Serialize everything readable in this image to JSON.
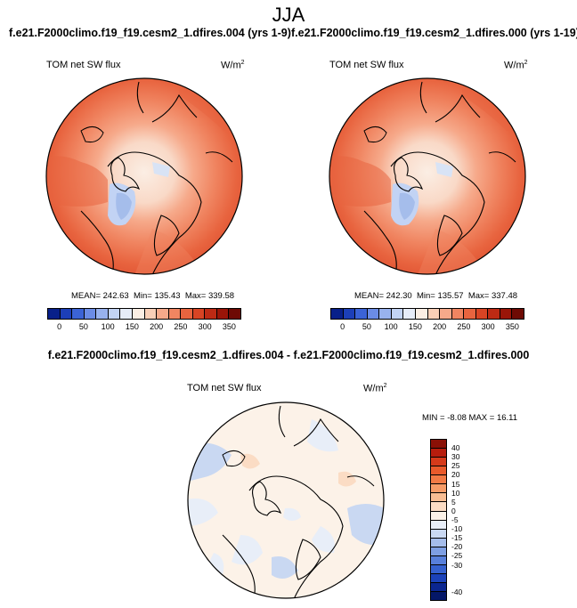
{
  "main_title": "JJA",
  "panel_left": {
    "case_title": "f.e21.F2000climo.f19_f19.cesm2_1.dfires.004 (yrs 1-9)",
    "variable": "TOM net SW flux",
    "unit": "W/m",
    "unit_sup": "2",
    "mean_label": "MEAN= 242.63",
    "min_label": "Min= 135.43",
    "max_label": "Max= 339.58"
  },
  "panel_right": {
    "case_title": "f.e21.F2000climo.f19_f19.cesm2_1.dfires.000 (yrs 1-19)",
    "variable": "TOM net SW flux",
    "unit": "W/m",
    "unit_sup": "2",
    "mean_label": "MEAN= 242.30",
    "min_label": "Min= 135.57",
    "max_label": "Max= 337.48"
  },
  "panel_diff": {
    "case_title": "f.e21.F2000climo.f19_f19.cesm2_1.dfires.004 - f.e21.F2000climo.f19_f19.cesm2_1.dfires.000",
    "variable": "TOM net SW flux",
    "unit": "W/m",
    "unit_sup": "2",
    "minmax_label": "MIN = -8.08 MAX = 16.11"
  },
  "abs_colorbar": {
    "colors": [
      "#08208a",
      "#1c3fb8",
      "#3b63d6",
      "#6b8ce6",
      "#98b2ee",
      "#c2d3f4",
      "#e6ecf8",
      "#fbeee4",
      "#f9cfb7",
      "#f6a98a",
      "#f08561",
      "#e8643f",
      "#d84424",
      "#bd2a14",
      "#9a1508",
      "#6e0a04"
    ],
    "ticks": [
      "0",
      "50",
      "100",
      "150",
      "200",
      "250",
      "300",
      "350"
    ]
  },
  "diff_colorbar": {
    "colors": [
      "#8a1006",
      "#b71d0d",
      "#d63a1a",
      "#ea5a2b",
      "#f37a45",
      "#f79c68",
      "#f8bd93",
      "#fbdcc4",
      "#fcf2e8",
      "#e8eef8",
      "#c9d8f2",
      "#a5bdeb",
      "#7e9fe3",
      "#5880db",
      "#3561cf",
      "#1b42b9",
      "#0b2690",
      "#041768"
    ],
    "ticks": [
      "40",
      "30",
      "25",
      "20",
      "15",
      "10",
      "5",
      "0",
      "-5",
      "-10",
      "-15",
      "-20",
      "-25",
      "-30",
      "-40"
    ]
  }
}
